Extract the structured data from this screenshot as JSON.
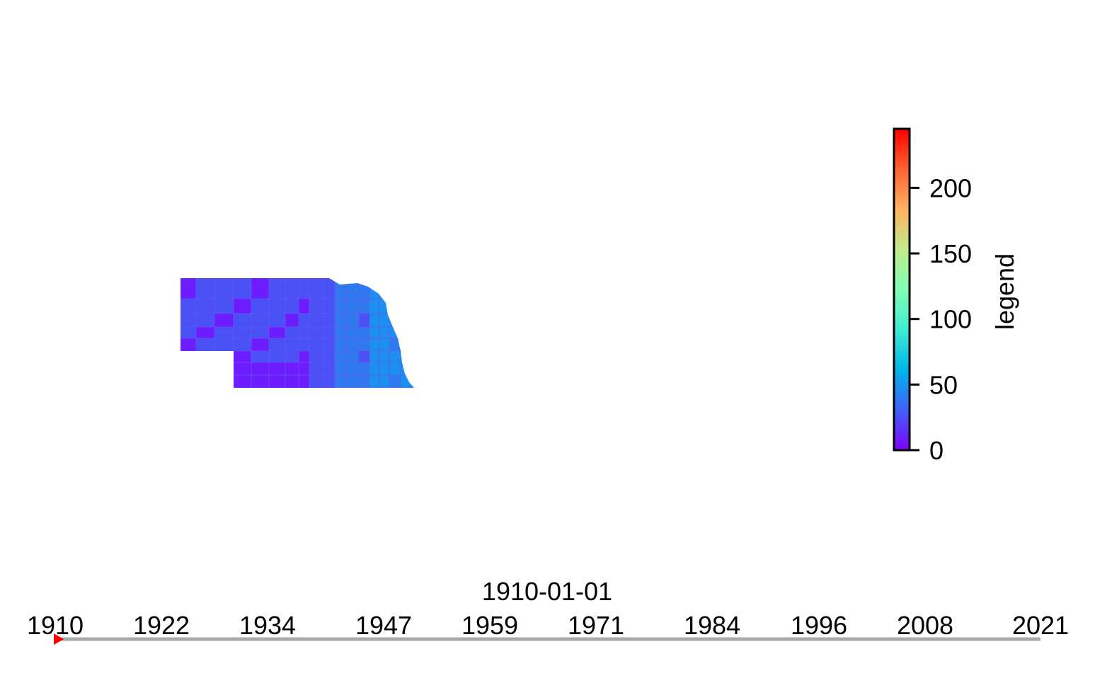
{
  "map": {
    "region_shown": "Nebraska",
    "colors": {
      "low": "#6d1cff",
      "mid_low": "#4a52f5",
      "mid": "#2f7af0",
      "high": "#1b90f0"
    }
  },
  "colorbar": {
    "label": "legend",
    "min": 0,
    "max": 245,
    "ticks": [
      {
        "value": 0,
        "label": "0"
      },
      {
        "value": 50,
        "label": "50"
      },
      {
        "value": 100,
        "label": "100"
      },
      {
        "value": 150,
        "label": "150"
      },
      {
        "value": 200,
        "label": "200"
      }
    ],
    "colormap": [
      "#7f00ff",
      "#4062f9",
      "#00b5eb",
      "#40ecd3",
      "#80feb3",
      "#c0eb8d",
      "#ffb360",
      "#ff6232",
      "#ff0000"
    ]
  },
  "timeline": {
    "current_label": "1910-01-01",
    "current_year": 1910,
    "start_year": 1910,
    "end_year": 2021,
    "ticks": [
      "1910",
      "1922",
      "1934",
      "1947",
      "1959",
      "1971",
      "1984",
      "1996",
      "2008",
      "2021"
    ],
    "marker_color": "#ff0000",
    "track_color": "#aaaaaa"
  }
}
